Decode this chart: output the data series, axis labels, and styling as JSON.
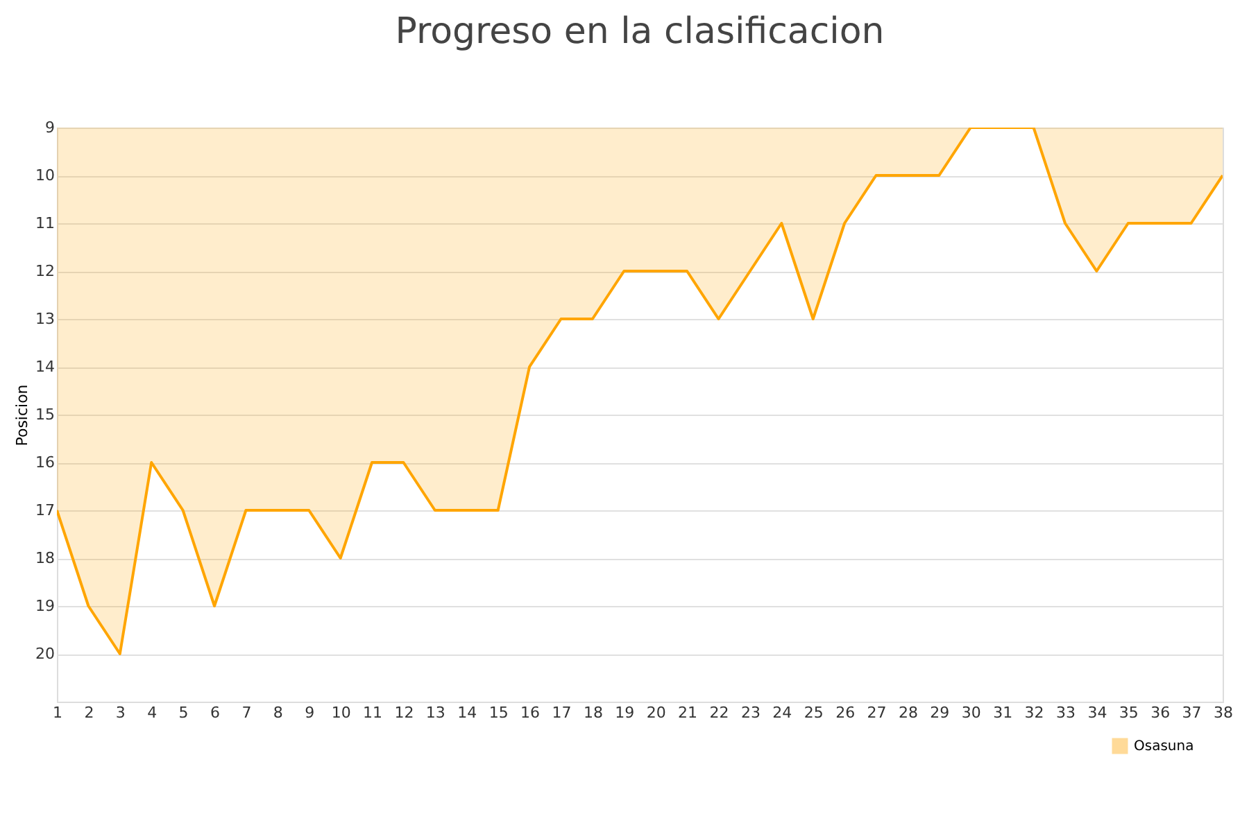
{
  "chart_data": {
    "type": "area",
    "title": "Progreso en la clasificacion",
    "ylabel": "Posicion",
    "x": [
      1,
      2,
      3,
      4,
      5,
      6,
      7,
      8,
      9,
      10,
      11,
      12,
      13,
      14,
      15,
      16,
      17,
      18,
      19,
      20,
      21,
      22,
      23,
      24,
      25,
      26,
      27,
      28,
      29,
      30,
      31,
      32,
      33,
      34,
      35,
      36,
      37,
      38
    ],
    "series": [
      {
        "name": "Osasuna",
        "color": "#ffa500",
        "values": [
          17,
          19,
          20,
          16,
          17,
          19,
          17,
          17,
          17,
          18,
          16,
          16,
          17,
          17,
          17,
          14,
          13,
          13,
          12,
          12,
          12,
          13,
          12,
          11,
          13,
          11,
          10,
          10,
          10,
          9,
          9,
          9,
          11,
          12,
          11,
          11,
          11,
          10
        ]
      }
    ],
    "xlim": [
      1,
      38
    ],
    "xticks": [
      1,
      2,
      3,
      4,
      5,
      6,
      7,
      8,
      9,
      10,
      11,
      12,
      13,
      14,
      15,
      16,
      17,
      18,
      19,
      20,
      21,
      22,
      23,
      24,
      25,
      26,
      27,
      28,
      29,
      30,
      31,
      32,
      33,
      34,
      35,
      36,
      37,
      38
    ],
    "ylim": [
      21,
      9
    ],
    "yticks": [
      9,
      10,
      11,
      12,
      13,
      14,
      15,
      16,
      17,
      18,
      19,
      20
    ],
    "grid": "y",
    "legend": "bottom right",
    "marker": "none",
    "line_style": "solid"
  }
}
